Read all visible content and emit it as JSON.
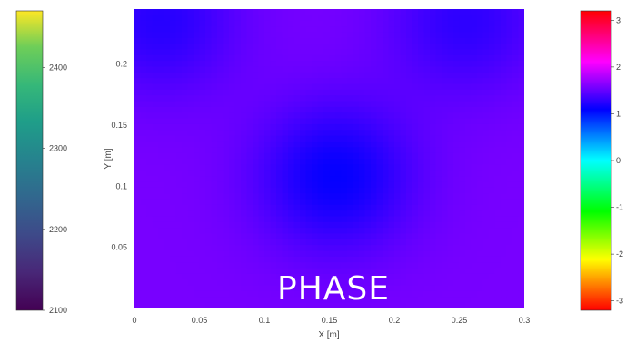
{
  "chart_data": {
    "type": "heatmap",
    "overlay_label": "PHASE",
    "xlabel": "X [m]",
    "ylabel": "Y [m]",
    "xlim": [
      0,
      0.3
    ],
    "ylim": [
      0,
      0.245
    ],
    "x_ticks": [
      "0",
      "0.05",
      "0.1",
      "0.15",
      "0.2",
      "0.25",
      "0.3"
    ],
    "y_ticks": [
      "0.05",
      "0.1",
      "0.15",
      "0.2"
    ],
    "phase_field": {
      "background": -0.6,
      "minima": [
        {
          "x": 0.155,
          "y": 0.108,
          "value": 1.1
        },
        {
          "x": 0.02,
          "y": 0.235,
          "value": 0.6
        },
        {
          "x": 0.255,
          "y": 0.235,
          "value": 0.5
        }
      ]
    },
    "left_colorbar": {
      "colormap": "viridis",
      "range": [
        2100,
        2470
      ],
      "ticks": [
        "2100",
        "2200",
        "2300",
        "2400"
      ]
    },
    "right_colorbar": {
      "colormap": "hsv",
      "range": [
        -3.2,
        3.2
      ],
      "ticks": [
        "3",
        "2",
        "1",
        "0",
        "-1",
        "-2",
        "-3"
      ]
    }
  }
}
